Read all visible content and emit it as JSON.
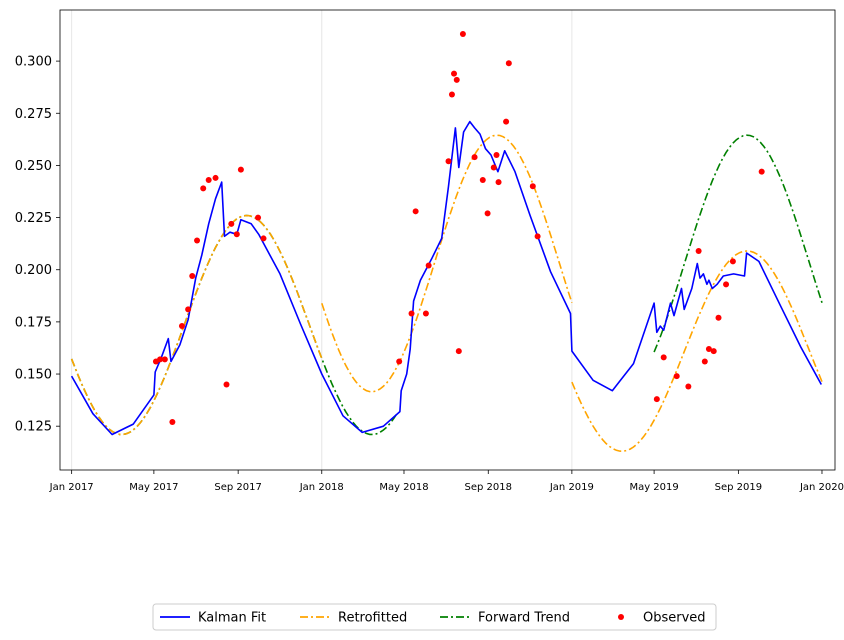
{
  "chart_data": {
    "type": "line",
    "title": "",
    "xlabel": "",
    "ylabel": "",
    "x_tick_labels": [
      "Jan 2017",
      "May 2017",
      "Sep 2017",
      "Jan 2018",
      "May 2018",
      "Sep 2018",
      "Jan 2019",
      "May 2019",
      "Sep 2019",
      "Jan 2020"
    ],
    "y_tick_labels": [
      "0.125",
      "0.150",
      "0.175",
      "0.200",
      "0.225",
      "0.250",
      "0.275",
      "0.300"
    ],
    "xlim": [
      "2016-12-15",
      "2020-01-20"
    ],
    "ylim": [
      0.104,
      0.3245
    ],
    "grid": "vertical lines at Jan 2017, Jan 2018, Jan 2019",
    "legend_position": "below plot, centered",
    "series": [
      {
        "name": "Kalman Fit",
        "style": "solid",
        "color": "#0000ff",
        "points": [
          [
            "2017-01-01",
            0.149
          ],
          [
            "2017-02-01",
            0.131
          ],
          [
            "2017-03-01",
            0.121
          ],
          [
            "2017-04-01",
            0.126
          ],
          [
            "2017-05-01",
            0.14
          ],
          [
            "2017-05-03",
            0.151
          ],
          [
            "2017-05-12",
            0.158
          ],
          [
            "2017-05-22",
            0.167
          ],
          [
            "2017-05-26",
            0.156
          ],
          [
            "2017-06-08",
            0.164
          ],
          [
            "2017-06-20",
            0.176
          ],
          [
            "2017-07-01",
            0.196
          ],
          [
            "2017-07-10",
            0.207
          ],
          [
            "2017-07-20",
            0.222
          ],
          [
            "2017-07-30",
            0.234
          ],
          [
            "2017-08-08",
            0.242
          ],
          [
            "2017-08-12",
            0.216
          ],
          [
            "2017-08-20",
            0.218
          ],
          [
            "2017-08-30",
            0.217
          ],
          [
            "2017-09-05",
            0.224
          ],
          [
            "2017-09-20",
            0.222
          ],
          [
            "2017-10-01",
            0.217
          ],
          [
            "2017-11-01",
            0.198
          ],
          [
            "2017-12-01",
            0.174
          ],
          [
            "2018-01-01",
            0.15
          ],
          [
            "2018-02-01",
            0.13
          ],
          [
            "2018-03-01",
            0.122
          ],
          [
            "2018-04-01",
            0.125
          ],
          [
            "2018-04-25",
            0.132
          ],
          [
            "2018-04-27",
            0.142
          ],
          [
            "2018-05-05",
            0.15
          ],
          [
            "2018-05-10",
            0.162
          ],
          [
            "2018-05-15",
            0.185
          ],
          [
            "2018-05-25",
            0.195
          ],
          [
            "2018-06-10",
            0.205
          ],
          [
            "2018-06-25",
            0.215
          ],
          [
            "2018-07-05",
            0.24
          ],
          [
            "2018-07-15",
            0.268
          ],
          [
            "2018-07-20",
            0.249
          ],
          [
            "2018-07-27",
            0.266
          ],
          [
            "2018-08-05",
            0.271
          ],
          [
            "2018-08-12",
            0.268
          ],
          [
            "2018-08-20",
            0.265
          ],
          [
            "2018-08-28",
            0.258
          ],
          [
            "2018-09-05",
            0.255
          ],
          [
            "2018-09-15",
            0.247
          ],
          [
            "2018-09-25",
            0.257
          ],
          [
            "2018-10-10",
            0.247
          ],
          [
            "2018-11-01",
            0.226
          ],
          [
            "2018-12-01",
            0.199
          ],
          [
            "2018-12-30",
            0.179
          ],
          [
            "2019-01-01",
            0.161
          ],
          [
            "2019-02-01",
            0.147
          ],
          [
            "2019-03-01",
            0.142
          ],
          [
            "2019-04-01",
            0.155
          ],
          [
            "2019-05-01",
            0.184
          ],
          [
            "2019-05-05",
            0.17
          ],
          [
            "2019-05-10",
            0.173
          ],
          [
            "2019-05-15",
            0.171
          ],
          [
            "2019-05-25",
            0.184
          ],
          [
            "2019-05-30",
            0.178
          ],
          [
            "2019-06-10",
            0.191
          ],
          [
            "2019-06-14",
            0.181
          ],
          [
            "2019-06-25",
            0.191
          ],
          [
            "2019-07-03",
            0.203
          ],
          [
            "2019-07-07",
            0.196
          ],
          [
            "2019-07-12",
            0.198
          ],
          [
            "2019-07-17",
            0.193
          ],
          [
            "2019-07-20",
            0.195
          ],
          [
            "2019-07-25",
            0.191
          ],
          [
            "2019-08-01",
            0.193
          ],
          [
            "2019-08-10",
            0.197
          ],
          [
            "2019-08-25",
            0.198
          ],
          [
            "2019-09-10",
            0.197
          ],
          [
            "2019-09-13",
            0.208
          ],
          [
            "2019-10-01",
            0.204
          ],
          [
            "2019-11-01",
            0.183
          ],
          [
            "2019-12-01",
            0.163
          ],
          [
            "2019-12-31",
            0.145
          ]
        ]
      },
      {
        "name": "Retrofitted",
        "style": "dashdot",
        "color": "#ffa500",
        "segments": [
          {
            "center": 0.1735,
            "amplitude": 0.0525,
            "min_date": "2017-03-15",
            "from": "2017-01-01",
            "to": "2018-01-01"
          },
          {
            "center": 0.203,
            "amplitude": 0.0615,
            "min_date": "2018-03-15",
            "from": "2018-01-01",
            "to": "2019-01-01"
          },
          {
            "center": 0.161,
            "amplitude": 0.048,
            "min_date": "2019-03-15",
            "from": "2019-01-01",
            "to": "2020-01-01"
          }
        ]
      },
      {
        "name": "Forward Trend",
        "style": "dashdot",
        "color": "#008000",
        "segments": [
          {
            "center": 0.1735,
            "amplitude": 0.0525,
            "min_date": "2017-03-15",
            "from": "2017-01-01",
            "to": "2018-04-25"
          },
          {
            "center": 0.203,
            "amplitude": 0.0615,
            "min_date": "2019-03-15",
            "from": "2019-05-01",
            "to": "2020-01-01"
          }
        ]
      },
      {
        "name": "Observed",
        "style": "points",
        "color": "#ff0000",
        "points": [
          [
            "2017-05-04",
            0.156
          ],
          [
            "2017-05-10",
            0.157
          ],
          [
            "2017-05-17",
            0.157
          ],
          [
            "2017-05-28",
            0.127
          ],
          [
            "2017-06-11",
            0.173
          ],
          [
            "2017-06-20",
            0.181
          ],
          [
            "2017-06-26",
            0.197
          ],
          [
            "2017-07-03",
            0.214
          ],
          [
            "2017-07-12",
            0.239
          ],
          [
            "2017-07-20",
            0.243
          ],
          [
            "2017-07-30",
            0.244
          ],
          [
            "2017-08-15",
            0.145
          ],
          [
            "2017-08-22",
            0.222
          ],
          [
            "2017-08-30",
            0.217
          ],
          [
            "2017-09-05",
            0.248
          ],
          [
            "2017-09-30",
            0.225
          ],
          [
            "2017-10-08",
            0.215
          ],
          [
            "2018-04-24",
            0.156
          ],
          [
            "2018-05-12",
            0.179
          ],
          [
            "2018-05-18",
            0.228
          ],
          [
            "2018-06-02",
            0.179
          ],
          [
            "2018-06-06",
            0.202
          ],
          [
            "2018-07-05",
            0.252
          ],
          [
            "2018-07-10",
            0.284
          ],
          [
            "2018-07-13",
            0.294
          ],
          [
            "2018-07-17",
            0.291
          ],
          [
            "2018-07-20",
            0.161
          ],
          [
            "2018-07-26",
            0.313
          ],
          [
            "2018-08-12",
            0.254
          ],
          [
            "2018-08-24",
            0.243
          ],
          [
            "2018-08-31",
            0.227
          ],
          [
            "2018-09-09",
            0.249
          ],
          [
            "2018-09-13",
            0.255
          ],
          [
            "2018-09-16",
            0.242
          ],
          [
            "2018-09-27",
            0.271
          ],
          [
            "2018-10-01",
            0.299
          ],
          [
            "2018-11-05",
            0.24
          ],
          [
            "2018-11-12",
            0.216
          ],
          [
            "2019-05-05",
            0.138
          ],
          [
            "2019-05-15",
            0.158
          ],
          [
            "2019-06-03",
            0.149
          ],
          [
            "2019-06-20",
            0.144
          ],
          [
            "2019-07-05",
            0.209
          ],
          [
            "2019-07-14",
            0.156
          ],
          [
            "2019-07-20",
            0.162
          ],
          [
            "2019-07-27",
            0.161
          ],
          [
            "2019-08-03",
            0.177
          ],
          [
            "2019-08-14",
            0.193
          ],
          [
            "2019-08-24",
            0.204
          ],
          [
            "2019-10-05",
            0.247
          ]
        ]
      }
    ]
  }
}
